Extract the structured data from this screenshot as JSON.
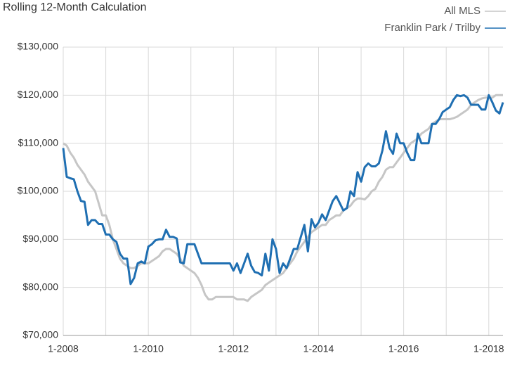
{
  "chart_data": {
    "type": "line",
    "title": "Rolling 12-Month Calculation",
    "x": [
      "1-2008",
      "2-2008",
      "3-2008",
      "4-2008",
      "5-2008",
      "6-2008",
      "7-2008",
      "8-2008",
      "9-2008",
      "10-2008",
      "11-2008",
      "12-2008",
      "1-2009",
      "2-2009",
      "3-2009",
      "4-2009",
      "5-2009",
      "6-2009",
      "7-2009",
      "8-2009",
      "9-2009",
      "10-2009",
      "11-2009",
      "12-2009",
      "1-2010",
      "2-2010",
      "3-2010",
      "4-2010",
      "5-2010",
      "6-2010",
      "7-2010",
      "8-2010",
      "9-2010",
      "10-2010",
      "11-2010",
      "12-2010",
      "1-2011",
      "2-2011",
      "3-2011",
      "4-2011",
      "5-2011",
      "6-2011",
      "7-2011",
      "8-2011",
      "9-2011",
      "10-2011",
      "11-2011",
      "12-2011",
      "1-2012",
      "2-2012",
      "3-2012",
      "4-2012",
      "5-2012",
      "6-2012",
      "7-2012",
      "8-2012",
      "9-2012",
      "10-2012",
      "11-2012",
      "12-2012",
      "1-2013",
      "2-2013",
      "3-2013",
      "4-2013",
      "5-2013",
      "6-2013",
      "7-2013",
      "8-2013",
      "9-2013",
      "10-2013",
      "11-2013",
      "12-2013",
      "1-2014",
      "2-2014",
      "3-2014",
      "4-2014",
      "5-2014",
      "6-2014",
      "7-2014",
      "8-2014",
      "9-2014",
      "10-2014",
      "11-2014",
      "12-2014",
      "1-2015",
      "2-2015",
      "3-2015",
      "4-2015",
      "5-2015",
      "6-2015",
      "7-2015",
      "8-2015",
      "9-2015",
      "10-2015",
      "11-2015",
      "12-2015",
      "1-2016",
      "2-2016",
      "3-2016",
      "4-2016",
      "5-2016",
      "6-2016",
      "7-2016",
      "8-2016",
      "9-2016",
      "10-2016",
      "11-2016",
      "12-2016",
      "1-2017",
      "2-2017",
      "3-2017",
      "4-2017",
      "5-2017",
      "6-2017",
      "7-2017",
      "8-2017",
      "9-2017",
      "10-2017",
      "11-2017",
      "12-2017",
      "1-2018",
      "2-2018",
      "3-2018",
      "4-2018",
      "5-2018"
    ],
    "xticks": [
      "1-2008",
      "1-2010",
      "1-2012",
      "1-2014",
      "1-2016",
      "1-2018"
    ],
    "ylim": [
      70000,
      130000
    ],
    "yticks": [
      {
        "value": 70000,
        "label": "$70,000"
      },
      {
        "value": 80000,
        "label": "$80,000"
      },
      {
        "value": 90000,
        "label": "$90,000"
      },
      {
        "value": 100000,
        "label": "$100,000"
      },
      {
        "value": 110000,
        "label": "$110,000"
      },
      {
        "value": 120000,
        "label": "$120,000"
      },
      {
        "value": 130000,
        "label": "$130,000"
      }
    ],
    "grid": true,
    "legend": "top-right",
    "series": [
      {
        "name": "All MLS",
        "color": "#c6c6c6",
        "values": [
          110000,
          109500,
          108000,
          107000,
          105500,
          104500,
          103500,
          102000,
          101000,
          100000,
          97500,
          95000,
          95000,
          93000,
          90000,
          88000,
          86000,
          85000,
          84500,
          84000,
          84000,
          84500,
          85000,
          85000,
          85000,
          85500,
          86000,
          86500,
          87500,
          88000,
          88000,
          87500,
          87000,
          86000,
          84500,
          84000,
          83500,
          83000,
          82000,
          80500,
          78500,
          77500,
          77500,
          78000,
          78000,
          78000,
          78000,
          78000,
          78000,
          77500,
          77500,
          77500,
          77200,
          78000,
          78500,
          79000,
          79500,
          80500,
          81000,
          81500,
          82000,
          82500,
          83000,
          84000,
          85000,
          86000,
          87500,
          88500,
          89500,
          90500,
          91500,
          92000,
          92500,
          93000,
          93000,
          94000,
          94500,
          95000,
          95000,
          96000,
          96500,
          97000,
          98000,
          98500,
          98500,
          98300,
          99000,
          100000,
          100500,
          102000,
          103000,
          104500,
          105000,
          105000,
          106000,
          107000,
          108000,
          109000,
          110000,
          110500,
          111000,
          112000,
          112500,
          113000,
          114000,
          114500,
          115000,
          115000,
          115000,
          115000,
          115200,
          115500,
          116000,
          116500,
          117000,
          118000,
          118500,
          119000,
          119300,
          119500,
          119500,
          119500,
          120000,
          120000,
          120000
        ]
      },
      {
        "name": "Franklin Park / Trilby",
        "color": "#1f6fb2",
        "values": [
          109000,
          103000,
          102700,
          102500,
          100000,
          98000,
          97800,
          93000,
          94000,
          94000,
          93200,
          93200,
          91000,
          91000,
          90000,
          89500,
          87000,
          86000,
          86000,
          80700,
          82000,
          85000,
          85400,
          85000,
          88500,
          89000,
          89800,
          90000,
          90000,
          92000,
          90500,
          90500,
          90200,
          85200,
          85000,
          89000,
          89000,
          89000,
          87000,
          85000,
          85000,
          85000,
          85000,
          85000,
          85000,
          85000,
          85000,
          85000,
          83500,
          85000,
          83000,
          85000,
          87000,
          84500,
          83200,
          83000,
          82500,
          87000,
          83500,
          90000,
          88000,
          83000,
          85000,
          84000,
          86000,
          88000,
          88000,
          90500,
          93000,
          87500,
          94200,
          92500,
          93500,
          95200,
          94000,
          96000,
          98000,
          99000,
          97500,
          96000,
          96500,
          100000,
          99000,
          104000,
          102000,
          105000,
          105800,
          105200,
          105200,
          105800,
          108500,
          112500,
          109000,
          107800,
          112000,
          110000,
          110000,
          108000,
          106500,
          106500,
          112000,
          110000,
          110000,
          110000,
          114000,
          114000,
          115000,
          116500,
          117000,
          117500,
          119000,
          120000,
          119800,
          120000,
          119500,
          118000,
          118000,
          118000,
          117000,
          117000,
          120000,
          118500,
          116800,
          116200,
          118500
        ]
      }
    ]
  }
}
